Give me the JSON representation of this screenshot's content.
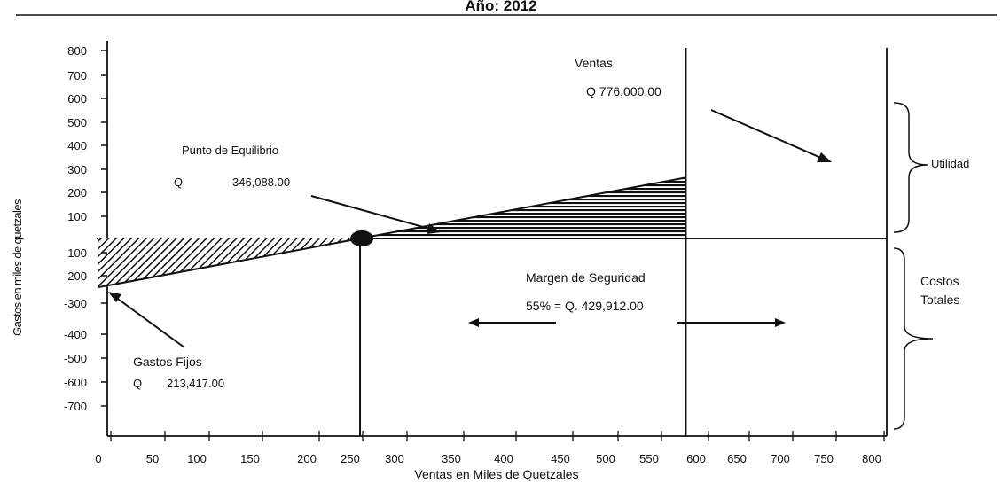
{
  "chart_data": {
    "type": "line",
    "title": "Año: 2012",
    "xlabel": "Ventas en Miles de Quetzales",
    "ylabel": "Gastos en miles de quetzales",
    "x_ticks": [
      "0",
      "50",
      "100",
      "150",
      "200",
      "250",
      "300",
      "350",
      "400",
      "450",
      "500",
      "550",
      "600",
      "650",
      "700",
      "750",
      "800"
    ],
    "y_ticks": [
      "800",
      "700",
      "600",
      "500",
      "400",
      "300",
      "200",
      "100",
      "-100",
      "-200",
      "-300",
      "-400",
      "-500",
      "-600",
      "-700"
    ],
    "profit_line": {
      "x": [
        0,
        346.088,
        776
      ],
      "y": [
        -213.417,
        0,
        265.6
      ]
    },
    "break_even_x": 346.088,
    "sales_x": 776,
    "annotations": {
      "sales_title": "Ventas",
      "sales_value": "Q  776,000.00",
      "breakeven_title": "Punto de Equilibrio",
      "breakeven_currency": "Q",
      "breakeven_value": "346,088.00",
      "safety_title": "Margen de Seguridad",
      "safety_value": "55% =  Q. 429,912.00",
      "fixed_title": "Gastos Fijos",
      "fixed_currency": "Q",
      "fixed_value": "213,417.00",
      "utility": "Utilidad",
      "costs_line1": "Costos",
      "costs_line2": "Totales"
    }
  }
}
